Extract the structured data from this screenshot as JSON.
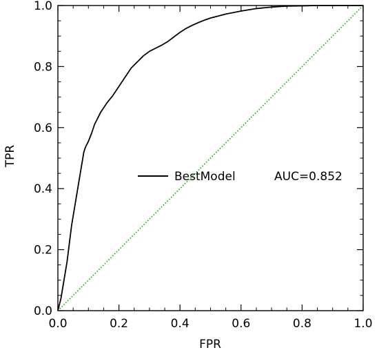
{
  "chart_data": {
    "type": "line",
    "title": "",
    "xlabel": "FPR",
    "ylabel": "TPR",
    "xlim": [
      0.0,
      1.0
    ],
    "ylim": [
      0.0,
      1.0
    ],
    "grid": false,
    "x_ticks": [
      "0.0",
      "0.2",
      "0.4",
      "0.6",
      "0.8",
      "1.0"
    ],
    "y_ticks": [
      "0.0",
      "0.2",
      "0.4",
      "0.6",
      "0.8",
      "1.0"
    ],
    "legend": {
      "placement": "center-right",
      "entries": [
        {
          "label": "BestModel",
          "extra": "AUC=0.852"
        }
      ]
    },
    "series": [
      {
        "name": "BestModel",
        "style": "solid",
        "color": "#000000",
        "x": [
          0.0,
          0.005,
          0.01,
          0.015,
          0.02,
          0.025,
          0.03,
          0.035,
          0.04,
          0.045,
          0.05,
          0.055,
          0.06,
          0.065,
          0.07,
          0.075,
          0.08,
          0.085,
          0.09,
          0.095,
          0.1,
          0.11,
          0.12,
          0.13,
          0.14,
          0.15,
          0.16,
          0.18,
          0.2,
          0.22,
          0.24,
          0.26,
          0.28,
          0.3,
          0.32,
          0.34,
          0.36,
          0.38,
          0.4,
          0.42,
          0.44,
          0.46,
          0.48,
          0.5,
          0.55,
          0.6,
          0.65,
          0.7,
          0.75,
          0.8,
          0.85,
          0.9,
          0.95,
          1.0
        ],
        "y": [
          0.0,
          0.02,
          0.04,
          0.07,
          0.1,
          0.13,
          0.16,
          0.2,
          0.24,
          0.28,
          0.31,
          0.34,
          0.37,
          0.4,
          0.43,
          0.46,
          0.49,
          0.52,
          0.535,
          0.545,
          0.555,
          0.58,
          0.61,
          0.63,
          0.65,
          0.665,
          0.68,
          0.705,
          0.735,
          0.765,
          0.795,
          0.815,
          0.835,
          0.85,
          0.86,
          0.87,
          0.882,
          0.897,
          0.912,
          0.925,
          0.935,
          0.944,
          0.952,
          0.959,
          0.972,
          0.982,
          0.99,
          0.995,
          0.998,
          0.999,
          1.0,
          1.0,
          1.0,
          1.0
        ]
      },
      {
        "name": "",
        "style": "dotted",
        "color": "#00aa00",
        "x": [
          0.0,
          1.0
        ],
        "y": [
          0.0,
          1.0
        ]
      }
    ]
  }
}
